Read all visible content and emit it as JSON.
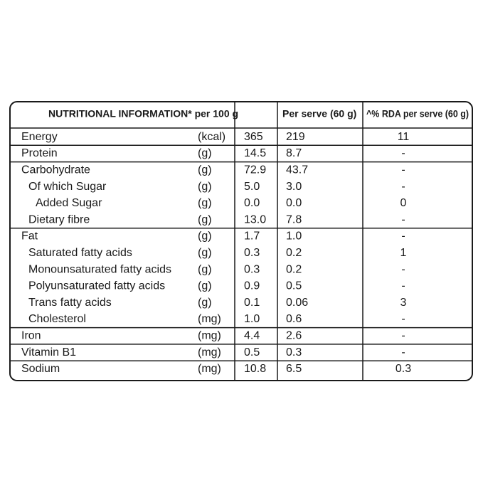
{
  "header": {
    "nutrient": "NUTRITIONAL INFORMATION* per 100 g",
    "per_serve": "Per serve (60 g)",
    "rda": "^% RDA per serve (60 g)"
  },
  "table": {
    "rows": [
      [
        "Energy",
        "(kcal)",
        "365",
        "219",
        "11"
      ],
      [
        "Protein",
        "(g)",
        "14.5",
        "8.7",
        "-"
      ],
      [
        "Carbohydrate",
        "(g)",
        "72.9",
        "43.7",
        "-"
      ],
      [
        "Of which Sugar",
        "(g)",
        "5.0",
        "3.0",
        "-"
      ],
      [
        "Added Sugar",
        "(g)",
        "0.0",
        "0.0",
        "0"
      ],
      [
        "Dietary fibre",
        "(g)",
        "13.0",
        "7.8",
        "-"
      ],
      [
        "Fat",
        "(g)",
        "1.7",
        "1.0",
        "-"
      ],
      [
        "Saturated fatty acids",
        "(g)",
        "0.3",
        "0.2",
        "1"
      ],
      [
        "Monounsaturated fatty acids",
        "(g)",
        "0.3",
        "0.2",
        "-"
      ],
      [
        "Polyunsaturated fatty acids",
        "(g)",
        "0.9",
        "0.5",
        "-"
      ],
      [
        "Trans fatty acids",
        "(g)",
        "0.1",
        "0.06",
        "3"
      ],
      [
        "Cholesterol",
        "(mg)",
        "1.0",
        "0.6",
        "-"
      ],
      [
        "Iron",
        "(mg)",
        "4.4",
        "2.6",
        "-"
      ],
      [
        "Vitamin B1",
        "(mg)",
        "0.5",
        "0.3",
        "-"
      ],
      [
        "Sodium",
        "(mg)",
        "10.8",
        "6.5",
        "0.3"
      ]
    ]
  }
}
